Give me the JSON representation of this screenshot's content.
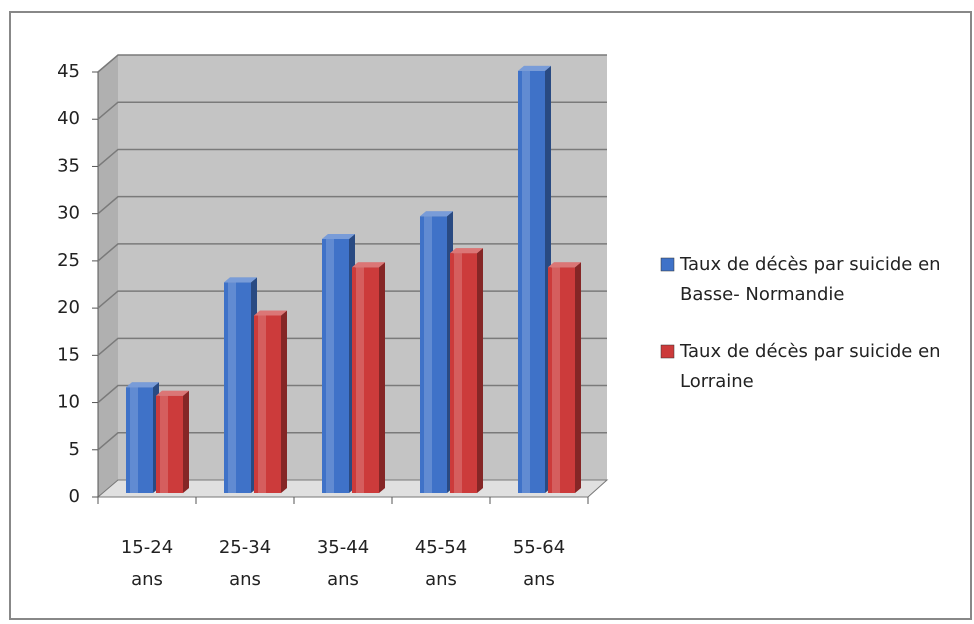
{
  "chart_data": {
    "type": "bar",
    "categories": [
      "15-24 ans",
      "25-34 ans",
      "35-44 ans",
      "45-54 ans",
      "55-64 ans"
    ],
    "series": [
      {
        "name": "Taux de décès par suicide en Basse- Normandie",
        "color": "#3f72c8",
        "values": [
          11.2,
          22.3,
          26.9,
          29.3,
          44.7
        ]
      },
      {
        "name": "Taux de décès par suicide en Lorraine",
        "color": "#cc3b3b",
        "values": [
          10.3,
          18.8,
          23.9,
          25.4,
          23.9
        ]
      }
    ],
    "ylim": [
      0,
      45
    ],
    "yticks": [
      0,
      5,
      10,
      15,
      20,
      25,
      30,
      35,
      40,
      45
    ],
    "grid": true,
    "legend": "right"
  }
}
